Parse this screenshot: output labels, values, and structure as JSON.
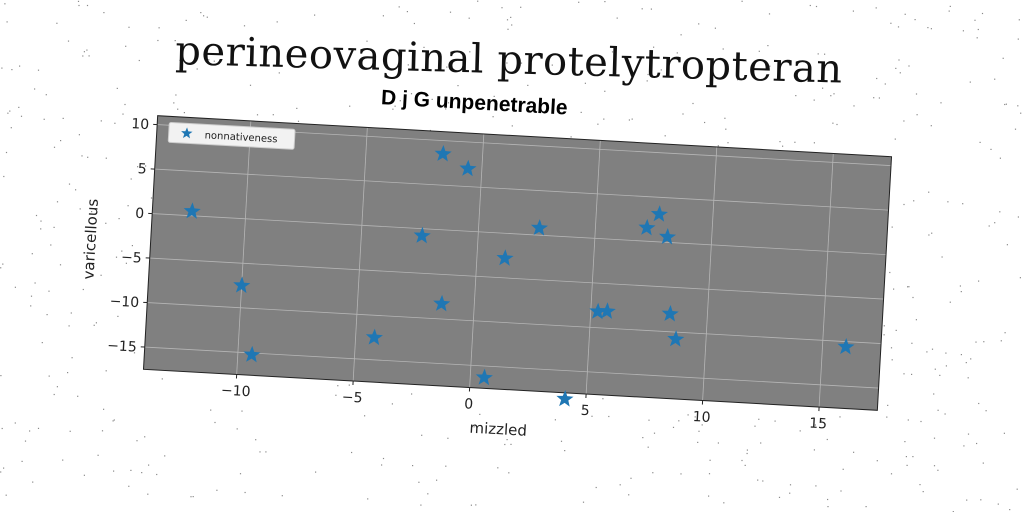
{
  "page": {
    "title": "perineovaginal protelytropteran"
  },
  "chart_data": {
    "type": "scatter",
    "title": "D j G unpenetrable",
    "xlabel": "mizzled",
    "ylabel": "varicellous",
    "xlim": [
      -14,
      17.5
    ],
    "ylim": [
      -17.5,
      11
    ],
    "xticks": [
      -10,
      -5,
      0,
      5,
      10,
      15
    ],
    "yticks": [
      -15,
      -10,
      -5,
      0,
      5,
      10
    ],
    "grid": true,
    "legend_position": "top-left",
    "plot_background": "#808080",
    "marker": "star",
    "series": [
      {
        "name": "nonnativeness",
        "color": "#1f77b4",
        "points": [
          [
            -12.3,
            0.5
          ],
          [
            -10.0,
            -7.5
          ],
          [
            -9.4,
            -15.2
          ],
          [
            -4.2,
            -12.5
          ],
          [
            -2.4,
            -0.8
          ],
          [
            -1.4,
            -8.3
          ],
          [
            -1.7,
            8.5
          ],
          [
            -0.6,
            7.0
          ],
          [
            0.6,
            -16.3
          ],
          [
            1.2,
            -2.8
          ],
          [
            2.6,
            0.8
          ],
          [
            4.1,
            -18.2
          ],
          [
            5.3,
            -8.2
          ],
          [
            5.7,
            -8.1
          ],
          [
            7.2,
            1.5
          ],
          [
            7.7,
            3.1
          ],
          [
            8.1,
            0.6
          ],
          [
            8.4,
            -8.0
          ],
          [
            8.7,
            -10.8
          ],
          [
            16.0,
            -10.6
          ]
        ]
      }
    ]
  }
}
